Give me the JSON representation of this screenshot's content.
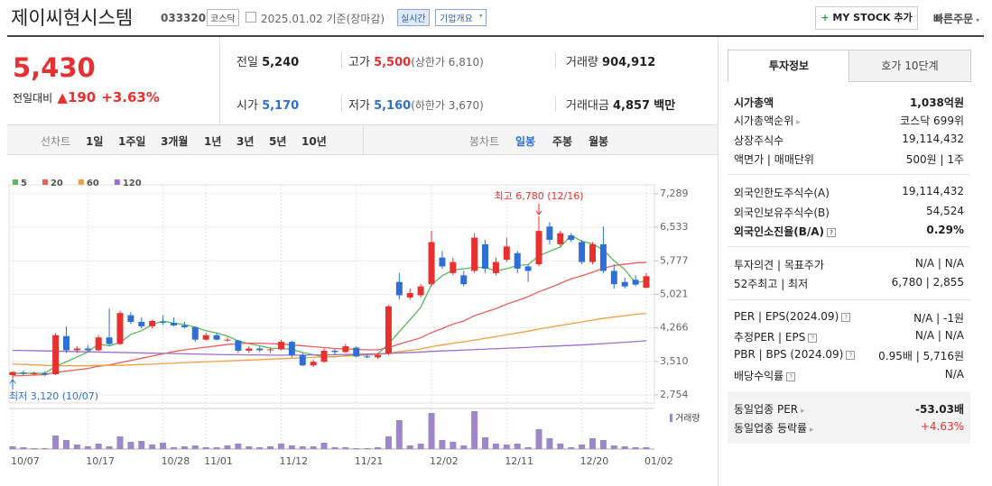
{
  "header": {
    "title": "제이씨현시스템",
    "code": "033320",
    "market": "코스닥",
    "date": "2025.01.02 기준(장마감)",
    "realtime": "실시간",
    "company_menu": "기업개요",
    "my_stock": "MY STOCK 추가",
    "quick_order": "빠른주문"
  },
  "quote": {
    "price": "5,430",
    "change_label": "전일대비",
    "change": "190",
    "change_rate": "+3.63%",
    "items": [
      {
        "label": "전일",
        "value": "5,240"
      },
      {
        "label": "고가",
        "value": "5,500",
        "note": "(상한가 6,810)"
      },
      {
        "label": "거래량",
        "value": "904,912"
      },
      {
        "label": "시가",
        "value": "5,170"
      },
      {
        "label": "저가",
        "value": "5,160",
        "note": "(하한가 3,670)"
      },
      {
        "label": "거래대금",
        "value": "4,857",
        "unit": "백만"
      }
    ]
  },
  "chart_tabs": {
    "line_label": "선차트",
    "line_periods": [
      "1일",
      "1주일",
      "3개월",
      "1년",
      "3년",
      "5년",
      "10년"
    ],
    "candle_label": "봉차트",
    "candle_periods": [
      "일봉",
      "주봉",
      "월봉"
    ]
  },
  "chart_data": {
    "type": "candlestick",
    "categories": [
      "10/07",
      null,
      null,
      null,
      null,
      null,
      null,
      "10/17",
      null,
      null,
      null,
      null,
      null,
      null,
      "10/28",
      null,
      null,
      null,
      "11/01",
      null,
      null,
      null,
      null,
      null,
      null,
      "11/12",
      null,
      null,
      null,
      null,
      null,
      null,
      "11/21",
      null,
      null,
      null,
      null,
      null,
      null,
      "12/02",
      null,
      null,
      null,
      null,
      null,
      null,
      "12/11",
      null,
      null,
      null,
      null,
      null,
      null,
      "12/20",
      null,
      null,
      null,
      null,
      null,
      "01/02"
    ],
    "open": [
      3200,
      3260,
      3230,
      3240,
      3220,
      4080,
      3760,
      3800,
      3760,
      4050,
      3900,
      4550,
      4400,
      4300,
      4400,
      4380,
      4320,
      4280,
      4000,
      4100,
      4000,
      3980,
      3750,
      3800,
      3760,
      3780,
      3950,
      3650,
      3420,
      3500,
      3750,
      3720,
      3820,
      3620,
      3600,
      3680,
      5300,
      4950,
      5000,
      5250,
      5850,
      5500,
      5450,
      5550,
      6150,
      5500,
      5800,
      5950,
      5650,
      5700,
      6550,
      6150,
      6350,
      6200,
      5750,
      6150,
      5550,
      5300,
      5350,
      5170
    ],
    "high": [
      3290,
      3300,
      3280,
      3290,
      4150,
      4300,
      3850,
      3870,
      4100,
      4700,
      4650,
      4620,
      4500,
      4450,
      4550,
      4500,
      4400,
      4300,
      4150,
      4150,
      4050,
      4000,
      3850,
      3850,
      3820,
      4000,
      3980,
      3700,
      3550,
      3800,
      3800,
      3900,
      3850,
      3680,
      3700,
      4780,
      5500,
      5150,
      5250,
      6450,
      6000,
      5850,
      5550,
      6400,
      6250,
      5850,
      6300,
      6000,
      5700,
      6780,
      6650,
      6450,
      6400,
      6250,
      6200,
      6550,
      5700,
      5400,
      5450,
      5500
    ],
    "low": [
      3120,
      3200,
      3190,
      3180,
      3200,
      3700,
      3700,
      3720,
      3740,
      3850,
      3880,
      4350,
      4250,
      4250,
      4330,
      4300,
      4250,
      3950,
      3980,
      3980,
      3950,
      3700,
      3700,
      3720,
      3700,
      3760,
      3600,
      3400,
      3380,
      3480,
      3650,
      3700,
      3600,
      3580,
      3560,
      3650,
      4900,
      4900,
      4950,
      5200,
      5600,
      5450,
      5200,
      5500,
      5500,
      5450,
      5750,
      5500,
      5300,
      5650,
      6150,
      6100,
      6200,
      5700,
      5700,
      5500,
      5150,
      5150,
      5200,
      5160
    ],
    "close": [
      3270,
      3230,
      3240,
      3210,
      4100,
      3760,
      3800,
      3760,
      4050,
      3900,
      4600,
      4400,
      4300,
      4420,
      4380,
      4320,
      4280,
      4000,
      4100,
      4000,
      4000,
      3750,
      3800,
      3760,
      3780,
      3950,
      3650,
      3420,
      3500,
      3750,
      3720,
      3850,
      3620,
      3600,
      3650,
      4750,
      5000,
      5050,
      5200,
      6200,
      5650,
      5750,
      5250,
      6300,
      5600,
      5750,
      6100,
      5600,
      5550,
      6450,
      6250,
      6400,
      6250,
      5750,
      6150,
      5550,
      5250,
      5200,
      5240,
      5430
    ],
    "up_color": "#e8312f",
    "down_color": "#2d6fd6",
    "ylim": [
      2570,
      7490
    ],
    "yticks": [
      {
        "value": 2754,
        "label": "2,754"
      },
      {
        "value": 3510,
        "label": "3,510"
      },
      {
        "value": 4266,
        "label": "4,266"
      },
      {
        "value": 5021,
        "label": "5,021"
      },
      {
        "value": 5777,
        "label": "5,777"
      },
      {
        "value": 6533,
        "label": "6,533"
      },
      {
        "value": 7289,
        "label": "7,289"
      }
    ],
    "grid": true,
    "high_label": "최고 6,780 (12/16)",
    "low_label": "최저 3,120 (10/07)",
    "moving_averages": [
      {
        "name": "5",
        "color": "#5cb85c",
        "values": [
          3240,
          3240,
          3245,
          3240,
          3400,
          3500,
          3610,
          3720,
          3900,
          3860,
          3930,
          4120,
          4200,
          4340,
          4420,
          4370,
          4340,
          4280,
          4200,
          4150,
          4080,
          3970,
          3910,
          3860,
          3810,
          3800,
          3780,
          3710,
          3660,
          3610,
          3610,
          3640,
          3670,
          3660,
          3680,
          3900,
          4180,
          4450,
          4730,
          5240,
          5440,
          5570,
          5600,
          5630,
          5630,
          5550,
          5600,
          5670,
          5690,
          5890,
          5990,
          6090,
          6350,
          6220,
          6160,
          6020,
          5780,
          5580,
          5280,
          5330
        ]
      },
      {
        "name": "20",
        "color": "#ef5a5a",
        "values": [
          3180,
          3190,
          3200,
          3210,
          3260,
          3290,
          3320,
          3350,
          3400,
          3430,
          3480,
          3530,
          3580,
          3630,
          3680,
          3730,
          3770,
          3800,
          3830,
          3860,
          3890,
          3910,
          3920,
          3920,
          3910,
          3900,
          3880,
          3860,
          3840,
          3820,
          3800,
          3790,
          3780,
          3770,
          3770,
          3820,
          3900,
          3970,
          4040,
          4160,
          4250,
          4350,
          4420,
          4540,
          4620,
          4700,
          4800,
          4880,
          4970,
          5080,
          5170,
          5270,
          5370,
          5440,
          5520,
          5610,
          5670,
          5700,
          5730,
          5740
        ]
      },
      {
        "name": "60",
        "color": "#f0a040",
        "values": [
          3450,
          3440,
          3430,
          3420,
          3410,
          3410,
          3410,
          3410,
          3420,
          3420,
          3420,
          3430,
          3440,
          3450,
          3460,
          3470,
          3480,
          3490,
          3500,
          3510,
          3520,
          3530,
          3540,
          3550,
          3560,
          3570,
          3580,
          3590,
          3600,
          3610,
          3620,
          3630,
          3640,
          3650,
          3660,
          3690,
          3730,
          3760,
          3790,
          3840,
          3880,
          3920,
          3950,
          3990,
          4030,
          4070,
          4110,
          4150,
          4190,
          4240,
          4280,
          4320,
          4360,
          4400,
          4440,
          4480,
          4510,
          4540,
          4570,
          4590
        ]
      },
      {
        "name": "120",
        "color": "#9b6fd0",
        "values": [
          3760,
          3755,
          3750,
          3745,
          3740,
          3735,
          3730,
          3725,
          3720,
          3715,
          3710,
          3705,
          3700,
          3695,
          3690,
          3685,
          3680,
          3675,
          3670,
          3665,
          3660,
          3660,
          3655,
          3655,
          3650,
          3650,
          3650,
          3650,
          3655,
          3655,
          3660,
          3665,
          3670,
          3675,
          3680,
          3690,
          3700,
          3710,
          3720,
          3735,
          3745,
          3755,
          3765,
          3775,
          3785,
          3795,
          3805,
          3815,
          3825,
          3840,
          3850,
          3860,
          3870,
          3880,
          3895,
          3910,
          3925,
          3940,
          3955,
          3975
        ]
      }
    ],
    "volume": {
      "name": "거래량",
      "color": "#9d86c9",
      "values": [
        1350000,
        900000,
        450000,
        450000,
        6750000,
        4500000,
        2250000,
        1350000,
        2700000,
        1350000,
        6300000,
        3600000,
        4050000,
        2250000,
        3150000,
        900000,
        1350000,
        1800000,
        900000,
        900000,
        1800000,
        2700000,
        1350000,
        900000,
        1350000,
        2700000,
        1800000,
        1350000,
        1350000,
        3150000,
        900000,
        900000,
        450000,
        450000,
        900000,
        6300000,
        14400000,
        1800000,
        2700000,
        18000000,
        4500000,
        3600000,
        1800000,
        18900000,
        5850000,
        2700000,
        2250000,
        2700000,
        900000,
        9900000,
        5400000,
        2700000,
        900000,
        2250000,
        5400000,
        4500000,
        1800000,
        1350000,
        900000,
        904912
      ]
    }
  },
  "sidebar": {
    "tabs": [
      "투자정보",
      "호가 10단계"
    ],
    "rows": [
      {
        "label": "시가총액",
        "value": "1,038억원"
      },
      {
        "label": "시가총액순위",
        "value": "코스닥 699위"
      },
      {
        "label": "상장주식수",
        "value": "19,114,432"
      },
      {
        "label": "액면가 | 매매단위",
        "value": "500원 | 1주"
      },
      {
        "label": "외국인한도주식수(A)",
        "value": "19,114,432"
      },
      {
        "label": "외국인보유주식수(B)",
        "value": "54,524"
      },
      {
        "label": "외국인소진율(B/A)",
        "value": "0.29%"
      },
      {
        "label": "투자의견 | 목표주가",
        "value": "N/A | N/A"
      },
      {
        "label": "52주최고 | 최저",
        "value": "6,780 | 2,855"
      },
      {
        "label": "PER | EPS(2024.09)",
        "value": "N/A | -1원"
      },
      {
        "label": "추정PER | EPS",
        "value": "N/A | N/A"
      },
      {
        "label": "PBR | BPS (2024.09)",
        "value": "0.95배 | 5,716원"
      },
      {
        "label": "배당수익률",
        "value": "N/A"
      }
    ],
    "industry": [
      {
        "label": "동일업종 PER",
        "value": "-53.03배"
      },
      {
        "label": "동일업종 등락률",
        "value": "+4.63%"
      }
    ]
  }
}
